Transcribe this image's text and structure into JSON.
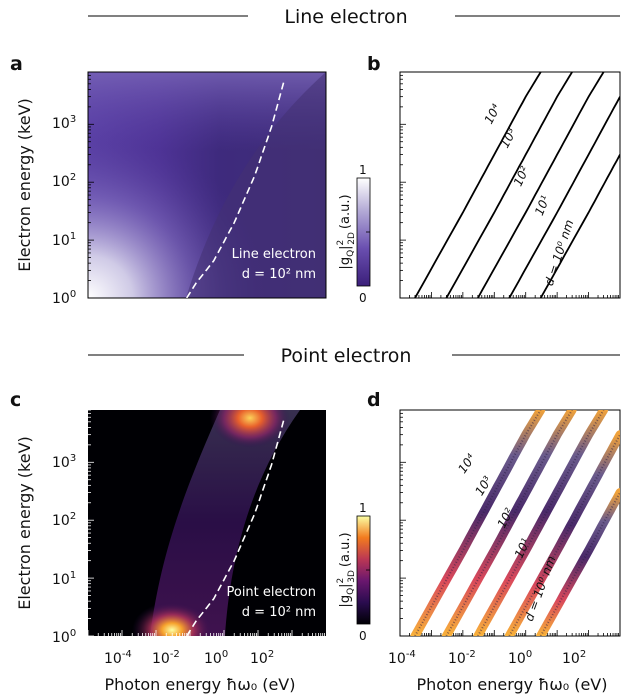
{
  "sections": {
    "top": "Line electron",
    "bottom": "Point electron"
  },
  "colorbars": {
    "top": {
      "label": "|gQ|²2D (a.u.)",
      "label_main": "|g",
      "label_sub": "Q",
      "label_sup": "2",
      "label_sub2": "2D",
      "label_unit": "(a.u.)",
      "max": "1",
      "min": "0"
    },
    "bottom": {
      "label": "|gQ|²3D (a.u.)",
      "label_main": "|g",
      "label_sub": "Q",
      "label_sup": "2",
      "label_sub2": "3D",
      "label_unit": "(a.u.)",
      "max": "1",
      "min": "0"
    }
  },
  "chart_data": [
    {
      "panel": "a",
      "type": "heatmap",
      "title": "",
      "xlabel": "",
      "ylabel": "Electron energy (keV)",
      "xscale": "log",
      "yscale": "log",
      "xlim": [
        0.0001,
        1000
      ],
      "ylim": [
        1,
        8000
      ],
      "yticks": [
        "10^0",
        "10^1",
        "10^2",
        "10^3"
      ],
      "colormap": "purple-white",
      "annotation": [
        "Line electron",
        "d = 10² nm"
      ],
      "dashed_curve": {
        "x": [
          0.08,
          0.15,
          0.5,
          2,
          8,
          25,
          60
        ],
        "y": [
          1,
          1.8,
          4.4,
          20,
          130,
          900,
          6000
        ]
      }
    },
    {
      "panel": "b",
      "type": "line",
      "title": "",
      "xlabel": "",
      "ylabel": "",
      "xscale": "log",
      "yscale": "log",
      "xlim": [
        0.0001,
        1000
      ],
      "ylim": [
        1,
        8000
      ],
      "series": [
        {
          "name": "10⁴",
          "x": [
            0.0003,
            0.01,
            0.1,
            1,
            3
          ],
          "y": [
            1,
            30,
            300,
            3000,
            8000
          ]
        },
        {
          "name": "10³",
          "x": [
            0.003,
            0.1,
            1,
            10,
            30
          ],
          "y": [
            1,
            30,
            300,
            3000,
            8000
          ]
        },
        {
          "name": "10²",
          "x": [
            0.03,
            1,
            10,
            100,
            300
          ],
          "y": [
            1,
            30,
            300,
            3000,
            8000
          ]
        },
        {
          "name": "10¹",
          "x": [
            0.3,
            10,
            100,
            1000
          ],
          "y": [
            1,
            30,
            300,
            3000
          ]
        },
        {
          "name": "d = 10⁰ nm",
          "x": [
            3,
            100,
            1000
          ],
          "y": [
            1,
            30,
            300
          ]
        }
      ]
    },
    {
      "panel": "c",
      "type": "heatmap",
      "title": "",
      "xlabel": "Photon energy ħω₀ (eV)",
      "ylabel": "Electron energy (keV)",
      "xscale": "log",
      "yscale": "log",
      "xlim": [
        0.0001,
        1000
      ],
      "ylim": [
        1,
        8000
      ],
      "xticks": [
        "10^-4",
        "10^-2",
        "10^0",
        "10^2"
      ],
      "yticks": [
        "10^0",
        "10^1",
        "10^2",
        "10^3"
      ],
      "colormap": "inferno",
      "annotation": [
        "Point electron",
        "d = 10² nm"
      ],
      "dashed_curve": {
        "x": [
          0.08,
          0.15,
          0.5,
          2,
          8,
          25,
          60
        ],
        "y": [
          1,
          1.8,
          4.4,
          20,
          130,
          900,
          6000
        ]
      }
    },
    {
      "panel": "d",
      "type": "line",
      "title": "",
      "xlabel": "Photon energy ħω₀ (eV)",
      "ylabel": "",
      "xscale": "log",
      "yscale": "log",
      "xlim": [
        0.0001,
        1000
      ],
      "ylim": [
        1,
        8000
      ],
      "xticks": [
        "10^-4",
        "10^-2",
        "10^0",
        "10^2"
      ],
      "series": [
        {
          "name": "10⁴",
          "x": [
            0.0003,
            0.01,
            0.1,
            1,
            3
          ],
          "y": [
            1,
            30,
            300,
            3000,
            8000
          ]
        },
        {
          "name": "10³",
          "x": [
            0.003,
            0.1,
            1,
            10,
            30
          ],
          "y": [
            1,
            30,
            300,
            3000,
            8000
          ]
        },
        {
          "name": "10²",
          "x": [
            0.03,
            1,
            10,
            100,
            300
          ],
          "y": [
            1,
            30,
            300,
            3000,
            8000
          ]
        },
        {
          "name": "10¹",
          "x": [
            0.3,
            10,
            100,
            1000
          ],
          "y": [
            1,
            30,
            300,
            3000
          ]
        },
        {
          "name": "d = 10⁰ nm",
          "x": [
            3,
            100,
            1000
          ],
          "y": [
            1,
            30,
            300
          ]
        }
      ]
    }
  ],
  "panel_letters": [
    "a",
    "b",
    "c",
    "d"
  ],
  "tick_labels": {
    "y": [
      "10",
      "10",
      "10",
      "10"
    ],
    "y_exp": [
      "0",
      "1",
      "2",
      "3"
    ],
    "x": [
      "10",
      "10",
      "10",
      "10"
    ],
    "x_exp": [
      "-4",
      "-2",
      "0",
      "2"
    ]
  },
  "curve_labels": {
    "b": [
      "10⁴",
      "10³",
      "10²",
      "10¹",
      "d = 10⁰ nm"
    ],
    "d": [
      "10⁴",
      "10³",
      "10²",
      "10¹",
      "d = 10⁰ nm"
    ]
  },
  "annotations": {
    "a": {
      "line1": "Line electron",
      "line2": "d = 10² nm"
    },
    "c": {
      "line1": "Point electron",
      "line2": "d = 10² nm"
    }
  },
  "axis_titles": {
    "ylabel_a": "Electron energy (keV)",
    "ylabel_c": "Electron energy (keV)",
    "xlabel_c": "Photon energy ħω₀ (eV)",
    "xlabel_d": "Photon energy ħω₀ (eV)"
  }
}
